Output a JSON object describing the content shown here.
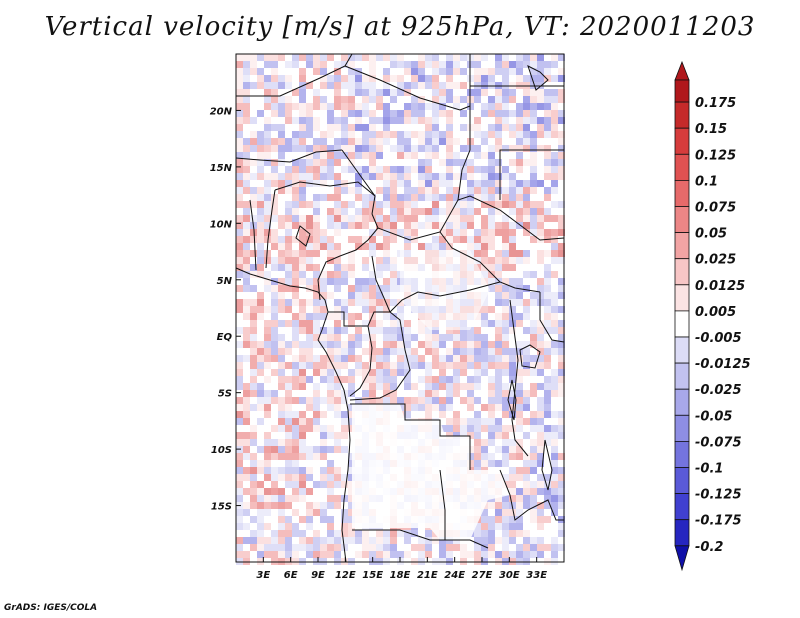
{
  "title": "Vertical velocity [m/s] at 925hPa, VT: 2020011203",
  "credit": "GrADS: IGES/COLA",
  "map": {
    "lon_range": [
      0,
      36
    ],
    "lat_range": [
      -20,
      25
    ],
    "lat_ticks": [
      {
        "lat": 20,
        "label": "20N"
      },
      {
        "lat": 15,
        "label": "15N"
      },
      {
        "lat": 10,
        "label": "10N"
      },
      {
        "lat": 5,
        "label": "5N"
      },
      {
        "lat": 0,
        "label": "EQ"
      },
      {
        "lat": -5,
        "label": "5S"
      },
      {
        "lat": -10,
        "label": "10S"
      },
      {
        "lat": -15,
        "label": "15S"
      }
    ],
    "lon_ticks": [
      {
        "lon": 3,
        "label": "3E"
      },
      {
        "lon": 6,
        "label": "6E"
      },
      {
        "lon": 9,
        "label": "9E"
      },
      {
        "lon": 12,
        "label": "12E"
      },
      {
        "lon": 15,
        "label": "15E"
      },
      {
        "lon": 18,
        "label": "18E"
      },
      {
        "lon": 21,
        "label": "21E"
      },
      {
        "lon": 24,
        "label": "24E"
      },
      {
        "lon": 27,
        "label": "27E"
      },
      {
        "lon": 30,
        "label": "30E"
      },
      {
        "lon": 33,
        "label": "33E"
      }
    ]
  },
  "colorbar": {
    "labels": [
      "0.175",
      "0.15",
      "0.125",
      "0.1",
      "0.075",
      "0.05",
      "0.025",
      "0.0125",
      "0.005",
      "-0.005",
      "-0.0125",
      "-0.025",
      "-0.05",
      "-0.075",
      "-0.1",
      "-0.125",
      "-0.175",
      "-0.2"
    ],
    "colors": [
      "#b0181c",
      "#c52a2a",
      "#d63c3c",
      "#e05252",
      "#e66a6a",
      "#ec8686",
      "#f2a4a4",
      "#f8c6c6",
      "#fbe3e3",
      "#ffffff",
      "#dcdcf6",
      "#c2c2f0",
      "#a8a8ea",
      "#8e8ee4",
      "#7474de",
      "#5a5ad8",
      "#4040d0",
      "#2626c0",
      "#1010a8"
    ]
  }
}
